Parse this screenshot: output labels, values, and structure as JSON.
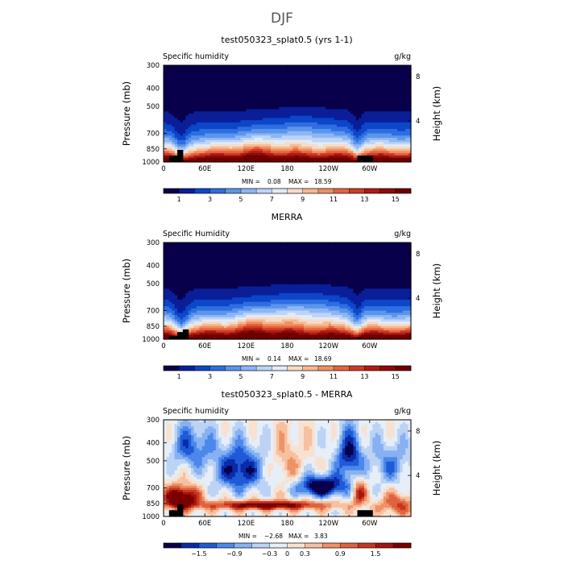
{
  "figure": {
    "title": "DJF"
  },
  "chart_data": [
    {
      "type": "heatmap",
      "title": "test050323_splat0.5 (yrs 1-1)",
      "left_label": "Specific humidity",
      "units": "g/kg",
      "xlabel": "",
      "ylabel": "Pressure  (mb)",
      "ylabel_right": "Height  (km)",
      "x_ticks": [
        "0",
        "60E",
        "120E",
        "180",
        "120W",
        "60W"
      ],
      "x_tick_values": [
        0,
        60,
        120,
        180,
        240,
        300
      ],
      "xlim": [
        0,
        360
      ],
      "y_ticks": [
        "300",
        "400",
        "500",
        "700",
        "850",
        "1000"
      ],
      "y_tick_values": [
        300,
        400,
        500,
        700,
        850,
        1000
      ],
      "ylim": [
        1000,
        300
      ],
      "right_ticks": [
        "8",
        "4"
      ],
      "right_tick_pressures": [
        345,
        600
      ],
      "min_label": "MIN =",
      "min_value": "0.08",
      "max_label": "MAX =",
      "max_value": "18.59",
      "colorbar_ticks": [
        "1",
        "3",
        "5",
        "7",
        "9",
        "11",
        "13",
        "15"
      ],
      "colorbar_levels": 16,
      "palette": "full",
      "field": "mean",
      "variant": 0
    },
    {
      "type": "heatmap",
      "title": "MERRA",
      "left_label": "Specific Humidity",
      "units": "g/kg",
      "xlabel": "",
      "ylabel": "Pressure  (mb)",
      "ylabel_right": "Height  (km)",
      "x_ticks": [
        "0",
        "60E",
        "120E",
        "180",
        "120W",
        "60W"
      ],
      "x_tick_values": [
        0,
        60,
        120,
        180,
        240,
        300
      ],
      "xlim": [
        0,
        360
      ],
      "y_ticks": [
        "300",
        "400",
        "500",
        "700",
        "850",
        "1000"
      ],
      "y_tick_values": [
        300,
        400,
        500,
        700,
        850,
        1000
      ],
      "ylim": [
        1000,
        300
      ],
      "right_ticks": [
        "8",
        "4"
      ],
      "right_tick_pressures": [
        345,
        600
      ],
      "min_label": "MIN =",
      "min_value": "0.14",
      "max_label": "MAX =",
      "max_value": "18.69",
      "colorbar_ticks": [
        "1",
        "3",
        "5",
        "7",
        "9",
        "11",
        "13",
        "15"
      ],
      "colorbar_levels": 16,
      "palette": "full",
      "field": "mean",
      "variant": 1
    },
    {
      "type": "heatmap",
      "title": "test050323_splat0.5 - MERRA",
      "left_label": "Specific humidity",
      "units": "g/kg",
      "xlabel": "",
      "ylabel": "Pressure  (mb)",
      "ylabel_right": "Height  (km)",
      "x_ticks": [
        "0",
        "60E",
        "120E",
        "180",
        "120W",
        "60W"
      ],
      "x_tick_values": [
        0,
        60,
        120,
        180,
        240,
        300
      ],
      "xlim": [
        0,
        360
      ],
      "y_ticks": [
        "300",
        "400",
        "500",
        "700",
        "850",
        "1000"
      ],
      "y_tick_values": [
        300,
        400,
        500,
        700,
        850,
        1000
      ],
      "ylim": [
        1000,
        300
      ],
      "right_ticks": [
        "8",
        "4"
      ],
      "right_tick_pressures": [
        345,
        600
      ],
      "min_label": "MIN =",
      "min_value": "−2.68",
      "max_label": "MAX =",
      "max_value": "3.83",
      "colorbar_ticks": [
        "−1.5",
        "−0.9",
        "−0.3",
        "0",
        "0.3",
        "0.9",
        "1.5"
      ],
      "colorbar_levels": 14,
      "palette": "diff",
      "field": "diff",
      "variant": 0
    }
  ],
  "colors": {
    "scale": [
      "#08004a",
      "#0a1e9a",
      "#0c46c9",
      "#2f6ee0",
      "#5b95ec",
      "#8db6f4",
      "#bcd4f6",
      "#e3ebf5",
      "#f5dcc8",
      "#f7b990",
      "#f08f62",
      "#e4643e",
      "#d03b24",
      "#b31a14",
      "#8f0a0a",
      "#6e0000"
    ],
    "diff_scale": [
      "#08004a",
      "#0c2aa8",
      "#1f5bd7",
      "#4c88ea",
      "#87b1f2",
      "#bcd3f5",
      "#e6eef7",
      "#f7e2d2",
      "#f7c0a0",
      "#ee9268",
      "#df633e",
      "#c63621",
      "#a3140f",
      "#7a0000"
    ],
    "topography": "#000000"
  }
}
